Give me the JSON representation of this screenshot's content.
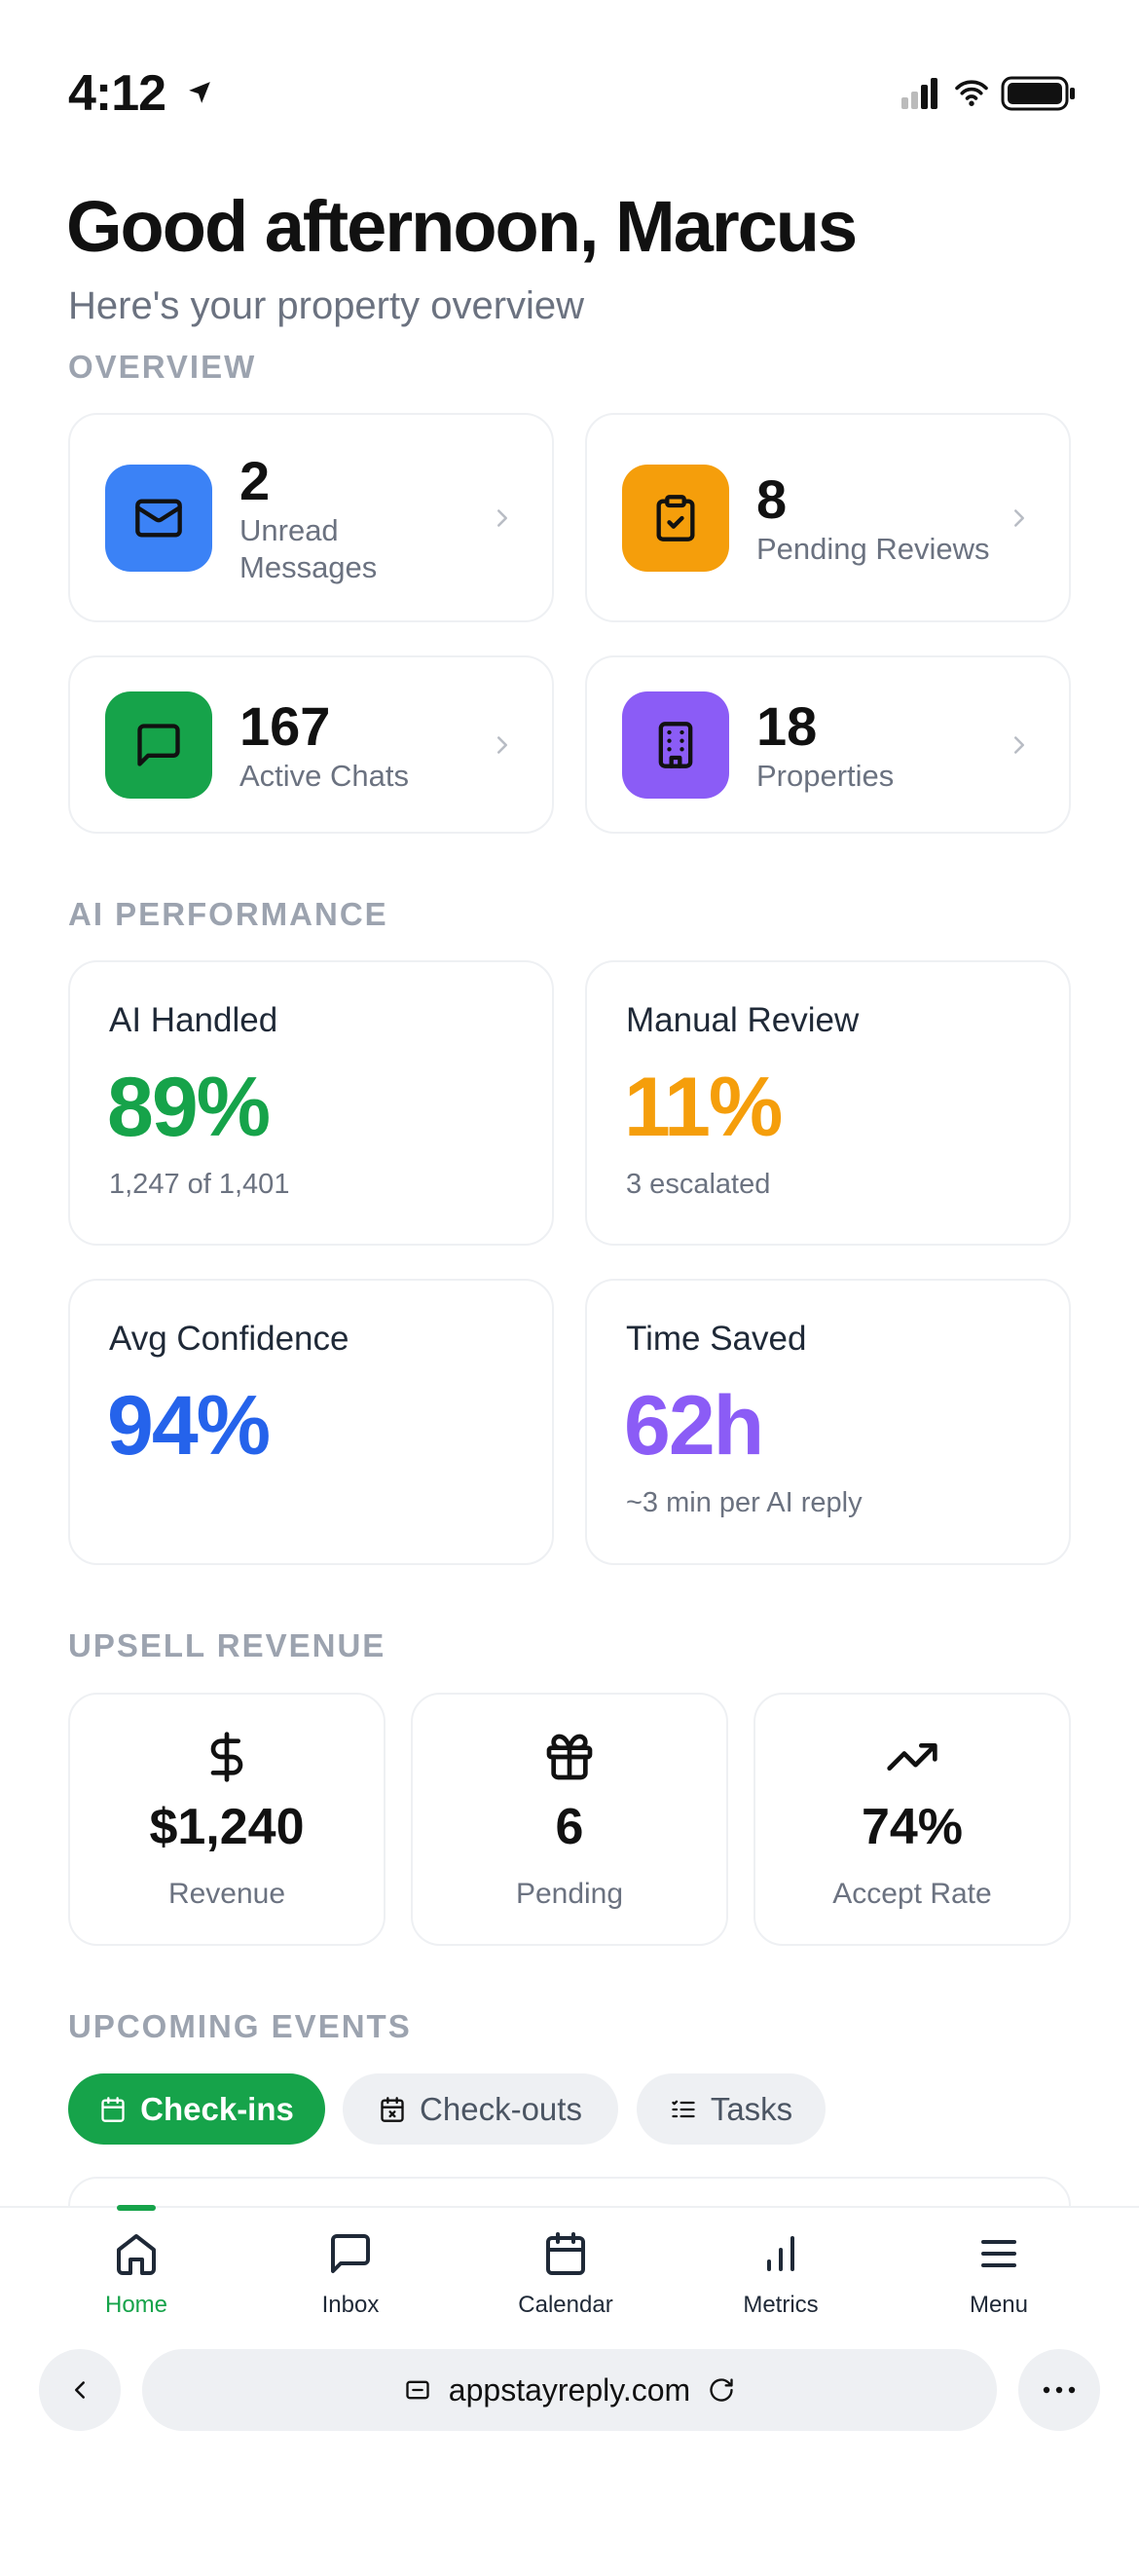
{
  "status_bar": {
    "time": "4:12"
  },
  "header": {
    "title": "Good afternoon, Marcus",
    "subtitle": "Here's your property overview"
  },
  "overview": {
    "heading": "OVERVIEW",
    "items": [
      {
        "value": "2",
        "label": "Unread Messages"
      },
      {
        "value": "8",
        "label": "Pending Reviews"
      },
      {
        "value": "167",
        "label": "Active Chats"
      },
      {
        "value": "18",
        "label": "Properties"
      }
    ]
  },
  "ai_performance": {
    "heading": "AI PERFORMANCE",
    "items": [
      {
        "label": "AI Handled",
        "value": "89%",
        "detail": "1,247 of 1,401"
      },
      {
        "label": "Manual Review",
        "value": "11%",
        "detail": "3 escalated"
      },
      {
        "label": "Avg Confidence",
        "value": "94%"
      },
      {
        "label": "Time Saved",
        "value": "62h",
        "detail": "~3 min per AI reply"
      }
    ]
  },
  "upsell_revenue": {
    "heading": "UPSELL REVENUE",
    "items": [
      {
        "value": "$1,240",
        "label": "Revenue"
      },
      {
        "value": "6",
        "label": "Pending"
      },
      {
        "value": "74%",
        "label": "Accept Rate"
      }
    ]
  },
  "upcoming_events": {
    "heading": "UPCOMING EVENTS",
    "tabs": [
      "Check-ins",
      "Check-outs",
      "Tasks"
    ]
  },
  "bottom_nav": [
    "Home",
    "Inbox",
    "Calendar",
    "Metrics",
    "Menu"
  ],
  "browser": {
    "url": "appstayreply.com"
  }
}
